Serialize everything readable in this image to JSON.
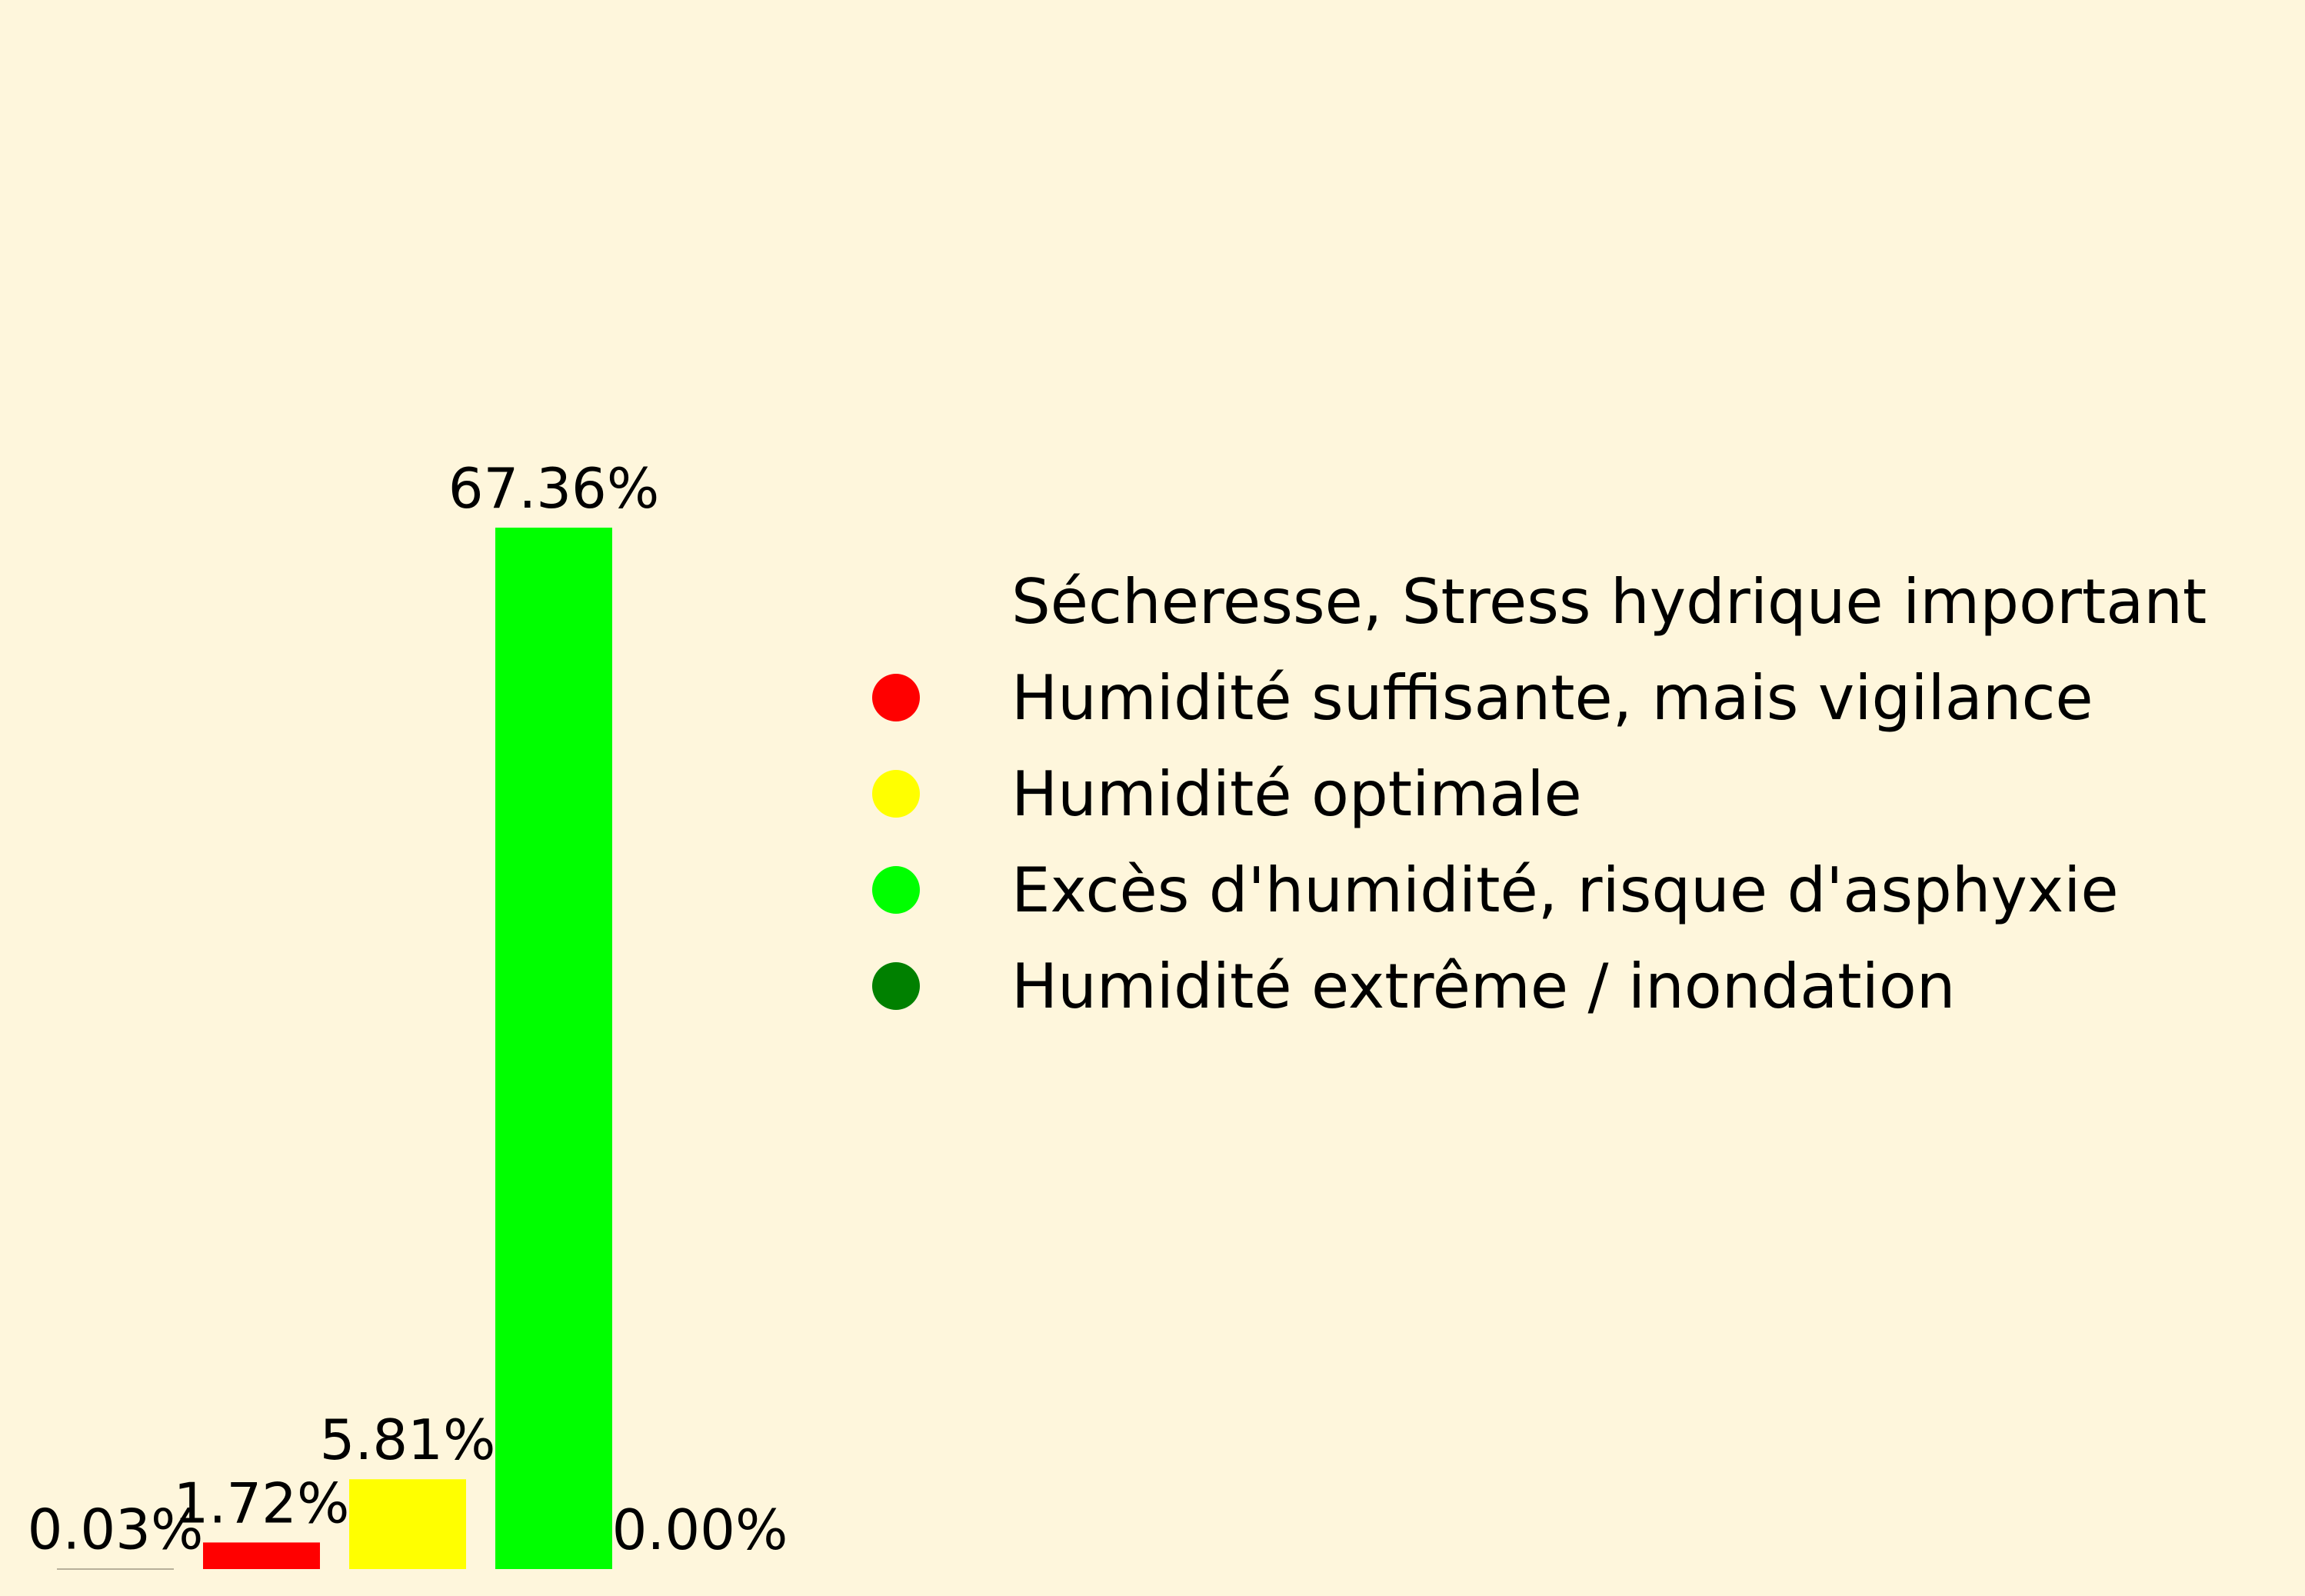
{
  "colors": {
    "background": "#fef6dc",
    "text": "#000000"
  },
  "chart_data": {
    "type": "bar",
    "categories": [
      "Sécheresse, Stress hydrique important",
      "Humidité suffisante, mais vigilance",
      "Humidité optimale",
      "Excès d'humidité, risque d'asphyxie",
      "Humidité extrême / inondation"
    ],
    "values": [
      0.03,
      1.72,
      5.81,
      67.36,
      0.0
    ],
    "data_labels": [
      "0.03%",
      "1.72%",
      "5.81%",
      "67.36%",
      "0.00%"
    ],
    "colors": [
      "#fef6dc",
      "#ff0000",
      "#ffff00",
      "#00ff00",
      "#008000"
    ],
    "ylim": [
      0,
      67.36
    ],
    "grid": false,
    "axes_visible": false,
    "legend": {
      "placement": "right",
      "marker": "circle"
    }
  }
}
